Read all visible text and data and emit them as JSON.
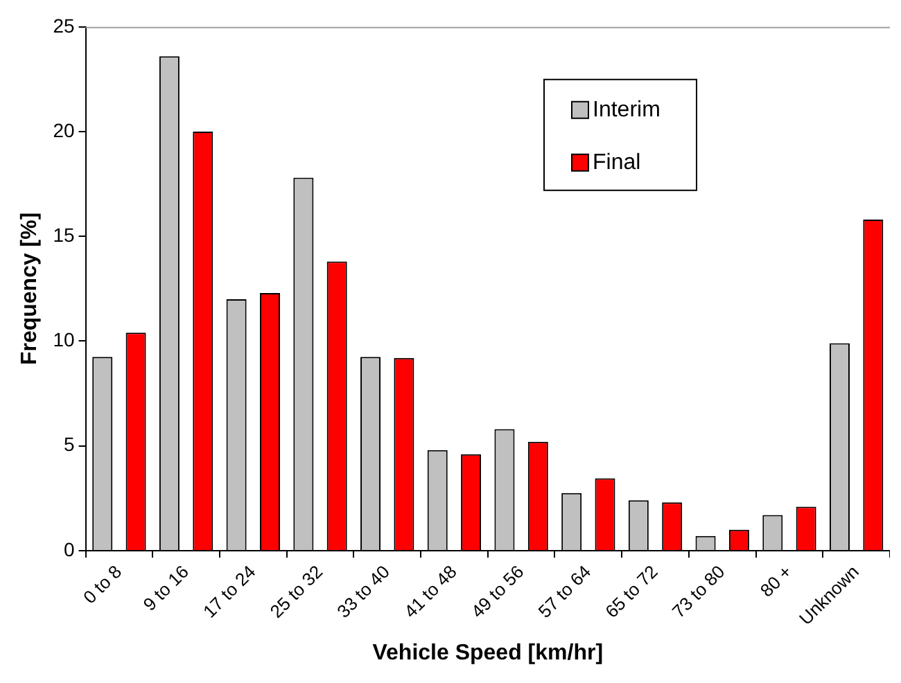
{
  "chart_data": {
    "type": "bar",
    "xlabel": "Vehicle Speed [km/hr]",
    "ylabel": "Frequency [%]",
    "categories": [
      "0 to 8",
      "9 to 16",
      "17 to 24",
      "25 to 32",
      "33 to 40",
      "41 to 48",
      "49 to 56",
      "57 to 64",
      "65 to 72",
      "73 to 80",
      "80 +",
      "Unknown"
    ],
    "series": [
      {
        "name": "Interim",
        "color": "#c0c0c0",
        "values": [
          9.25,
          23.6,
          12.0,
          17.8,
          9.25,
          4.8,
          5.8,
          2.75,
          2.4,
          0.7,
          1.7,
          9.9
        ]
      },
      {
        "name": "Final",
        "color": "#ff0000",
        "values": [
          10.4,
          20.0,
          12.3,
          13.8,
          9.2,
          4.6,
          5.2,
          3.45,
          2.3,
          1.0,
          2.1,
          15.8
        ]
      }
    ],
    "ylim": [
      0,
      25
    ],
    "yticks": [
      0,
      5,
      10,
      15,
      20,
      25
    ],
    "grid": false,
    "legend": "top right"
  }
}
